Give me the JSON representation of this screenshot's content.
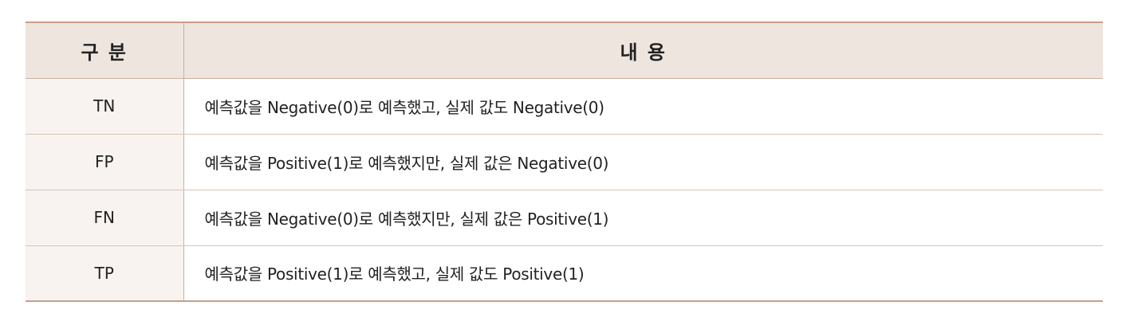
{
  "table": {
    "headers": [
      "구 분",
      "내 용"
    ],
    "rows": [
      {
        "label": "TN",
        "content": "예측값을 Negative(0)로 예측했고, 실제 값도 Negative(0)"
      },
      {
        "label": "FP",
        "content": "예측값을 Positive(1)로 예측했지만, 실제 값은 Negative(0)"
      },
      {
        "label": "FN",
        "content": "예측값을 Negative(0)로 예측했지만, 실제 값은 Positive(1)"
      },
      {
        "label": "TP",
        "content": "예측값을 Positive(1)로 예측했고, 실제 값도 Positive(1)"
      }
    ]
  },
  "colors": {
    "header_bg": "#eee5df",
    "label_col_bg": "#f8f3f0",
    "accent_border": "#c99f86"
  }
}
